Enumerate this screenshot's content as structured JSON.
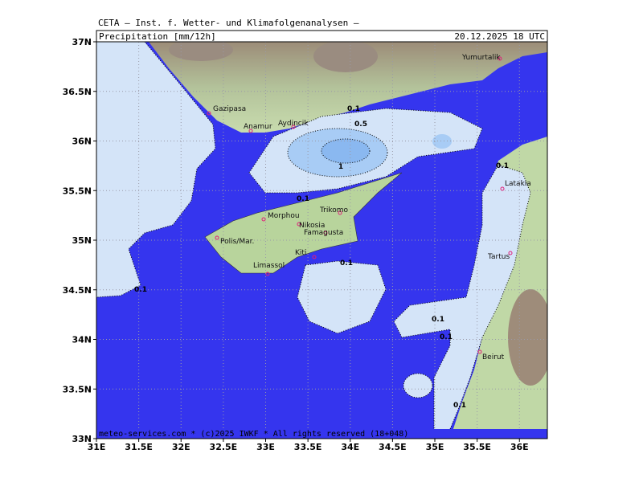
{
  "header": {
    "institute": "CETA – Inst. f. Wetter- und Klimafolgenanalysen –",
    "title": "Precipitation [mm/12h]",
    "datetime": "20.12.2025 18 UTC"
  },
  "map": {
    "xlim": [
      31,
      36.33
    ],
    "ylim": [
      33,
      37
    ],
    "xticks": [
      {
        "value": 31,
        "label": "31E"
      },
      {
        "value": 31.5,
        "label": "31.5E"
      },
      {
        "value": 32,
        "label": "32E"
      },
      {
        "value": 32.5,
        "label": "32.5E"
      },
      {
        "value": 33,
        "label": "33E"
      },
      {
        "value": 33.5,
        "label": "33.5E"
      },
      {
        "value": 34,
        "label": "34E"
      },
      {
        "value": 34.5,
        "label": "34.5E"
      },
      {
        "value": 35,
        "label": "35E"
      },
      {
        "value": 35.5,
        "label": "35.5E"
      },
      {
        "value": 36,
        "label": "36E"
      }
    ],
    "yticks": [
      {
        "value": 33,
        "label": "33N"
      },
      {
        "value": 33.5,
        "label": "33.5N"
      },
      {
        "value": 34,
        "label": "34N"
      },
      {
        "value": 34.5,
        "label": "34.5N"
      },
      {
        "value": 35,
        "label": "35N"
      },
      {
        "value": 35.5,
        "label": "35.5N"
      },
      {
        "value": 36,
        "label": "36N"
      },
      {
        "value": 36.5,
        "label": "36.5N"
      },
      {
        "value": 37,
        "label": "37N"
      }
    ],
    "cities": [
      "Gazipasa",
      "Anamur",
      "Aydincik",
      "Yumurtalik",
      "Latakia",
      "Trikomo",
      "Morphou",
      "Nikosia",
      "Famagusta",
      "Polis/Mar.",
      "Kiti",
      "Limassol",
      "Tartus",
      "Beirut"
    ],
    "contour_labels": [
      0.1,
      0.5,
      1,
      0.1,
      0.1,
      0.1,
      0.1,
      0.1,
      0.1,
      0.1
    ]
  },
  "footer": "meteo-services.com * (c)2025 IWKF * All rights reserved (18+048)"
}
